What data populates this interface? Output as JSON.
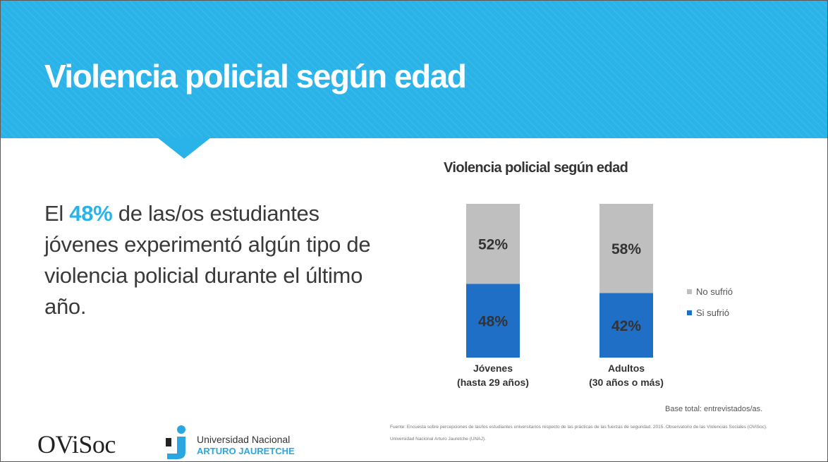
{
  "header": {
    "title": "Violencia policial  según edad"
  },
  "body_text": {
    "prefix": "El ",
    "highlight": "48%",
    "rest": " de las/os estudiantes jóvenes experimentó algún tipo de violencia policial durante el último año."
  },
  "chart_data": {
    "type": "bar",
    "stacked": true,
    "percent": true,
    "title": "Violencia policial según edad",
    "categories": [
      [
        "Jóvenes",
        "(hasta 29 años)"
      ],
      [
        "Adultos",
        "(30 años o más)"
      ]
    ],
    "series": [
      {
        "name": "Si sufrió",
        "values": [
          48,
          42
        ],
        "labels": [
          "48%",
          "42%"
        ],
        "color": "#1f6fc6"
      },
      {
        "name": "No sufrió",
        "values": [
          52,
          58
        ],
        "labels": [
          "52%",
          "58%"
        ],
        "color": "#bfbfbf"
      }
    ],
    "ylim": [
      0,
      100
    ],
    "legend_position": "right",
    "legend_order": [
      "No sufrió",
      "Si sufrió"
    ],
    "grid": false
  },
  "base_note": "Base total: entrevistados/as.",
  "source_note": "Fuente: Encuesta sobre percepciones de las/los estudiantes universitarios respecto de las prácticas de las fuerzas de seguridad. 2015. Observatorio de las Violencias Sociales (OViSoc). Universidad Nacional Arturo Jauretche (UNAJ).",
  "logos": {
    "ovisoc": "OViSoc",
    "unaj_line1": "Universidad Nacional",
    "unaj_line2": "ARTURO JAURETCHE"
  },
  "colors": {
    "accent": "#29b3e8",
    "bar_blue": "#1f6fc6",
    "bar_gray": "#bfbfbf"
  }
}
